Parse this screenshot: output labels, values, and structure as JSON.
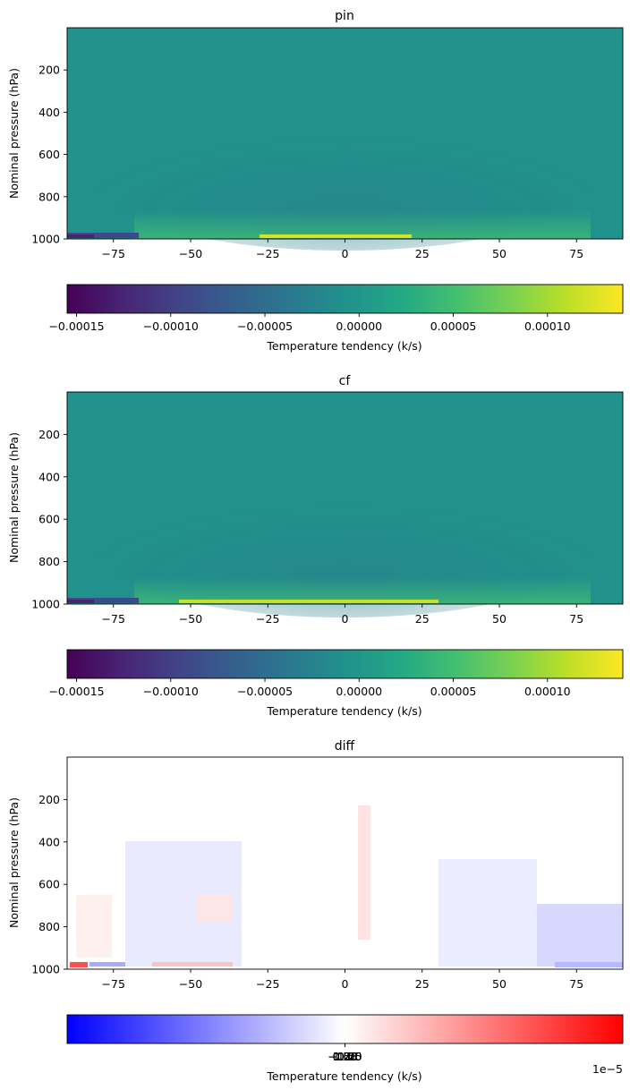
{
  "chart_data": [
    {
      "type": "heatmap",
      "title": "pin",
      "ylabel": "Nominal pressure (hPa)",
      "x_ticks": [
        "−75",
        "−50",
        "−25",
        "0",
        "25",
        "50",
        "75"
      ],
      "x_tick_values": [
        -75,
        -50,
        -25,
        0,
        25,
        50,
        75
      ],
      "xlim": [
        -90,
        90
      ],
      "y_ticks": [
        "200",
        "400",
        "600",
        "800",
        "1000"
      ],
      "y_tick_values": [
        200,
        400,
        600,
        800,
        1000
      ],
      "ylim": [
        1000,
        0
      ],
      "colormap": "viridis",
      "colorbar": {
        "label": "Temperature tendency (k/s)",
        "ticks": [
          "−0.00015",
          "−0.00010",
          "−0.00005",
          "0.00000",
          "0.00005",
          "0.00010"
        ],
        "tick_values": [
          -0.00015,
          -0.0001,
          -5e-05,
          0,
          5e-05,
          0.0001
        ],
        "range": [
          -0.000155,
          0.00014
        ],
        "offset_text": ""
      }
    },
    {
      "type": "heatmap",
      "title": "cf",
      "ylabel": "Nominal pressure (hPa)",
      "x_ticks": [
        "−75",
        "−50",
        "−25",
        "0",
        "25",
        "50",
        "75"
      ],
      "x_tick_values": [
        -75,
        -50,
        -25,
        0,
        25,
        50,
        75
      ],
      "xlim": [
        -90,
        90
      ],
      "y_ticks": [
        "200",
        "400",
        "600",
        "800",
        "1000"
      ],
      "y_tick_values": [
        200,
        400,
        600,
        800,
        1000
      ],
      "ylim": [
        1000,
        0
      ],
      "colormap": "viridis",
      "colorbar": {
        "label": "Temperature tendency (k/s)",
        "ticks": [
          "−0.00015",
          "−0.00010",
          "−0.00005",
          "0.00000",
          "0.00005",
          "0.00010"
        ],
        "tick_values": [
          -0.00015,
          -0.0001,
          -5e-05,
          0,
          5e-05,
          0.0001
        ],
        "range": [
          -0.000155,
          0.00014
        ],
        "offset_text": ""
      }
    },
    {
      "type": "heatmap",
      "title": "diff",
      "ylabel": "Nominal pressure (hPa)",
      "x_ticks": [
        "−75",
        "−50",
        "−25",
        "0",
        "25",
        "50",
        "75"
      ],
      "x_tick_values": [
        -75,
        -50,
        -25,
        0,
        25,
        50,
        75
      ],
      "xlim": [
        -90,
        90
      ],
      "y_ticks": [
        "200",
        "400",
        "600",
        "800",
        "1000"
      ],
      "y_tick_values": [
        200,
        400,
        600,
        800,
        1000
      ],
      "ylim": [
        1000,
        0
      ],
      "colormap": "bwr",
      "colorbar": {
        "label": "Temperature tendency (k/s)",
        "ticks": [
          "−1.00",
          "−0.75",
          "−0.50",
          "−0.25",
          "0.00",
          "0.25",
          "0.50",
          "0.75",
          "1.00"
        ],
        "tick_values": [
          -1,
          -0.75,
          -0.5,
          -0.25,
          0,
          0.25,
          0.5,
          0.75,
          1
        ],
        "range": [
          -1.09,
          1.09
        ],
        "offset_text": "1e−5"
      }
    }
  ]
}
